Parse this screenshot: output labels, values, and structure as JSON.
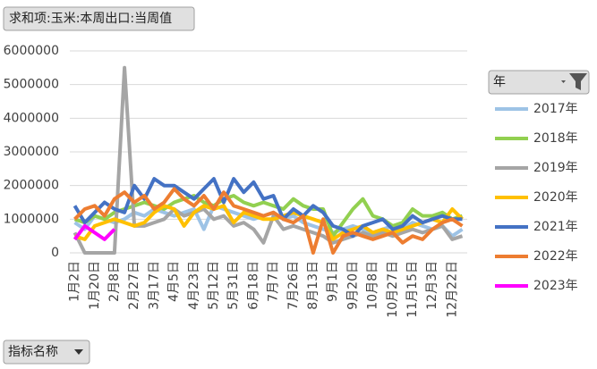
{
  "chart_data": {
    "type": "line",
    "value_field": "求和项:玉米:本周出口:当周值",
    "legend_title": "年",
    "axis_field": "指标名称",
    "categories": [
      "1月2日",
      null,
      "1月20日",
      null,
      "2月8日",
      null,
      "2月27日",
      null,
      "3月17日",
      null,
      "4月5日",
      null,
      "4月23日",
      null,
      "5月12日",
      null,
      "5月31日",
      null,
      "6月18日",
      null,
      "7月7日",
      null,
      "7月26日",
      null,
      "8月13日",
      null,
      "9月1日",
      null,
      "9月20日",
      null,
      "10月8日",
      null,
      "10月27日",
      null,
      "11月15日",
      null,
      "12月3日",
      null,
      "12月22日",
      null
    ],
    "series": [
      {
        "name": "2017年",
        "color": "#9dc3e6",
        "values": [
          900000,
          700000,
          1100000,
          1000000,
          900000,
          1000000,
          1200000,
          1100000,
          1300000,
          1200000,
          1100000,
          1200000,
          1300000,
          700000,
          1400000,
          1300000,
          1200000,
          1100000,
          1000000,
          1100000,
          1200000,
          1000000,
          1100000,
          900000,
          800000,
          700000,
          600000,
          700000,
          800000,
          700000,
          600000,
          700000,
          800000,
          700000,
          900000,
          800000,
          700000,
          800000,
          500000,
          700000
        ]
      },
      {
        "name": "2018年",
        "color": "#92d050",
        "values": [
          1000000,
          900000,
          1100000,
          1000000,
          1200000,
          1300000,
          1400000,
          1500000,
          1400000,
          1300000,
          1500000,
          1600000,
          1700000,
          1500000,
          1400000,
          1600000,
          1700000,
          1500000,
          1400000,
          1500000,
          1400000,
          1300000,
          1600000,
          1400000,
          1300000,
          1300000,
          500000,
          900000,
          1300000,
          1600000,
          1100000,
          1000000,
          800000,
          900000,
          1300000,
          1100000,
          1100000,
          1200000,
          1000000,
          1100000
        ]
      },
      {
        "name": "2019年",
        "color": "#a5a5a5",
        "values": [
          600000,
          0,
          0,
          0,
          0,
          5500000,
          800000,
          800000,
          900000,
          1000000,
          1300000,
          1100000,
          1200000,
          1300000,
          1000000,
          1100000,
          800000,
          900000,
          700000,
          300000,
          1100000,
          700000,
          800000,
          700000,
          600000,
          500000,
          300000,
          400000,
          500000,
          600000,
          500000,
          600000,
          500000,
          600000,
          700000,
          600000,
          700000,
          800000,
          400000,
          500000
        ]
      },
      {
        "name": "2020年",
        "color": "#ffc000",
        "values": [
          500000,
          400000,
          800000,
          900000,
          1000000,
          900000,
          800000,
          900000,
          1200000,
          1400000,
          1300000,
          800000,
          1200000,
          1400000,
          1300000,
          1400000,
          900000,
          1200000,
          1100000,
          1000000,
          1000000,
          1100000,
          1200000,
          1100000,
          1000000,
          900000,
          400000,
          600000,
          700000,
          800000,
          600000,
          700000,
          600000,
          700000,
          800000,
          900000,
          1000000,
          900000,
          1300000,
          1000000
        ]
      },
      {
        "name": "2021年",
        "color": "#4472c4",
        "values": [
          1400000,
          900000,
          1200000,
          1500000,
          1300000,
          1200000,
          2000000,
          1600000,
          2200000,
          2000000,
          2000000,
          1800000,
          1600000,
          1900000,
          2200000,
          1500000,
          2200000,
          1800000,
          2100000,
          1600000,
          1700000,
          1000000,
          1300000,
          1100000,
          1400000,
          1200000,
          800000,
          700000,
          500000,
          800000,
          900000,
          1000000,
          700000,
          800000,
          1100000,
          900000,
          1000000,
          1100000,
          1000000,
          1000000
        ]
      },
      {
        "name": "2022年",
        "color": "#ed7d31",
        "values": [
          1000000,
          1300000,
          1400000,
          1100000,
          1600000,
          1800000,
          1500000,
          1700000,
          1300000,
          1500000,
          1900000,
          1600000,
          1400000,
          1700000,
          1300000,
          1800000,
          1400000,
          1300000,
          1200000,
          1100000,
          1200000,
          1000000,
          900000,
          1100000,
          0,
          1000000,
          0,
          500000,
          600000,
          500000,
          400000,
          500000,
          600000,
          300000,
          500000,
          400000,
          700000,
          900000,
          1000000,
          800000
        ]
      },
      {
        "name": "2023年",
        "color": "#ff00ff",
        "values": [
          400000,
          800000,
          600000,
          400000,
          700000,
          null,
          null,
          null,
          null,
          null,
          null,
          null,
          null,
          null,
          null,
          null,
          null,
          null,
          null,
          null,
          null,
          null,
          null,
          null,
          null,
          null,
          null,
          null,
          null,
          null,
          null,
          null,
          null,
          null,
          null,
          null,
          null,
          null,
          null,
          null
        ]
      }
    ],
    "ylim": [
      0,
      6000000
    ],
    "yticks": [
      0,
      1000000,
      2000000,
      3000000,
      4000000,
      5000000,
      6000000
    ],
    "grid": true
  }
}
